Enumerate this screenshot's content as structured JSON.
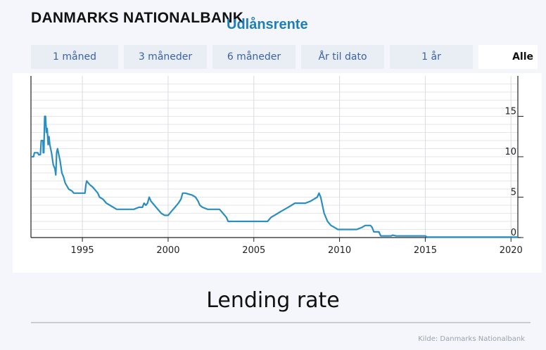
{
  "header": {
    "brand": "DANMARKS NATIONALBANK",
    "chart_title": "Udlånsrente"
  },
  "tabs": [
    {
      "label": "1 måned",
      "active": false
    },
    {
      "label": "3 måneder",
      "active": false
    },
    {
      "label": "6 måneder",
      "active": false
    },
    {
      "label": "År til dato",
      "active": false
    },
    {
      "label": "1 år",
      "active": false
    },
    {
      "label": "Alle",
      "active": true
    }
  ],
  "caption": "Lending rate",
  "source": "Kilde: Danmarks Nationalbank",
  "colors": {
    "line": "#2a8fc0",
    "tab_text": "#3a63a8",
    "title": "#1e7fb8"
  },
  "chart_data": {
    "type": "line",
    "title": "Udlånsrente",
    "xlabel": "",
    "ylabel": "",
    "xlim": [
      1992.0,
      2020.4
    ],
    "ylim": [
      0,
      20
    ],
    "xticks": [
      1995,
      2000,
      2005,
      2010,
      2015,
      2020
    ],
    "yticks": [
      0,
      5,
      10,
      15
    ],
    "grid": true,
    "y_axis_position": "right",
    "series": [
      {
        "name": "",
        "points": [
          [
            1992.0,
            10.0
          ],
          [
            1992.15,
            10.0
          ],
          [
            1992.2,
            10.5
          ],
          [
            1992.4,
            10.5
          ],
          [
            1992.45,
            10.25
          ],
          [
            1992.55,
            10.25
          ],
          [
            1992.6,
            12.0
          ],
          [
            1992.7,
            12.0
          ],
          [
            1992.72,
            10.5
          ],
          [
            1992.75,
            10.5
          ],
          [
            1992.8,
            15.0
          ],
          [
            1992.85,
            15.0
          ],
          [
            1992.9,
            13.0
          ],
          [
            1992.95,
            13.5
          ],
          [
            1993.0,
            11.5
          ],
          [
            1993.05,
            12.5
          ],
          [
            1993.1,
            11.5
          ],
          [
            1993.2,
            10.5
          ],
          [
            1993.3,
            9.0
          ],
          [
            1993.4,
            8.5
          ],
          [
            1993.45,
            7.75
          ],
          [
            1993.5,
            10.5
          ],
          [
            1993.55,
            11.0
          ],
          [
            1993.6,
            10.5
          ],
          [
            1993.7,
            9.5
          ],
          [
            1993.8,
            8.0
          ],
          [
            1993.9,
            7.5
          ],
          [
            1994.0,
            6.75
          ],
          [
            1994.2,
            6.0
          ],
          [
            1994.4,
            5.75
          ],
          [
            1994.5,
            5.5
          ],
          [
            1995.0,
            5.5
          ],
          [
            1995.15,
            5.5
          ],
          [
            1995.2,
            6.5
          ],
          [
            1995.25,
            7.0
          ],
          [
            1995.35,
            6.75
          ],
          [
            1995.45,
            6.5
          ],
          [
            1995.6,
            6.25
          ],
          [
            1995.7,
            6.0
          ],
          [
            1995.8,
            5.75
          ],
          [
            1995.9,
            5.5
          ],
          [
            1996.0,
            5.0
          ],
          [
            1996.2,
            4.75
          ],
          [
            1996.4,
            4.25
          ],
          [
            1996.6,
            4.0
          ],
          [
            1996.8,
            3.75
          ],
          [
            1997.0,
            3.5
          ],
          [
            1997.5,
            3.5
          ],
          [
            1998.0,
            3.5
          ],
          [
            1998.3,
            3.75
          ],
          [
            1998.5,
            3.75
          ],
          [
            1998.6,
            4.25
          ],
          [
            1998.7,
            4.0
          ],
          [
            1998.8,
            4.25
          ],
          [
            1998.9,
            5.0
          ],
          [
            1999.0,
            4.5
          ],
          [
            1999.2,
            4.0
          ],
          [
            1999.4,
            3.5
          ],
          [
            1999.6,
            3.0
          ],
          [
            1999.8,
            2.75
          ],
          [
            2000.0,
            2.75
          ],
          [
            2000.2,
            3.25
          ],
          [
            2000.4,
            3.75
          ],
          [
            2000.6,
            4.25
          ],
          [
            2000.75,
            4.75
          ],
          [
            2000.85,
            5.5
          ],
          [
            2001.0,
            5.5
          ],
          [
            2001.4,
            5.25
          ],
          [
            2001.6,
            5.0
          ],
          [
            2001.75,
            4.5
          ],
          [
            2001.85,
            4.0
          ],
          [
            2002.0,
            3.75
          ],
          [
            2002.3,
            3.5
          ],
          [
            2002.8,
            3.5
          ],
          [
            2003.0,
            3.5
          ],
          [
            2003.2,
            3.0
          ],
          [
            2003.4,
            2.5
          ],
          [
            2003.5,
            2.0
          ],
          [
            2003.6,
            2.0
          ],
          [
            2005.0,
            2.0
          ],
          [
            2005.8,
            2.0
          ],
          [
            2006.0,
            2.5
          ],
          [
            2006.2,
            2.75
          ],
          [
            2006.4,
            3.0
          ],
          [
            2006.6,
            3.25
          ],
          [
            2006.8,
            3.5
          ],
          [
            2007.0,
            3.75
          ],
          [
            2007.2,
            4.0
          ],
          [
            2007.4,
            4.25
          ],
          [
            2007.6,
            4.25
          ],
          [
            2008.0,
            4.25
          ],
          [
            2008.3,
            4.5
          ],
          [
            2008.5,
            4.75
          ],
          [
            2008.7,
            5.0
          ],
          [
            2008.8,
            5.5
          ],
          [
            2008.9,
            5.0
          ],
          [
            2009.0,
            4.0
          ],
          [
            2009.1,
            3.0
          ],
          [
            2009.2,
            2.5
          ],
          [
            2009.3,
            2.0
          ],
          [
            2009.5,
            1.5
          ],
          [
            2009.7,
            1.25
          ],
          [
            2009.9,
            1.0
          ],
          [
            2010.5,
            1.0
          ],
          [
            2011.0,
            1.0
          ],
          [
            2011.3,
            1.25
          ],
          [
            2011.5,
            1.5
          ],
          [
            2011.8,
            1.5
          ],
          [
            2011.9,
            1.25
          ],
          [
            2012.0,
            0.7
          ],
          [
            2012.3,
            0.7
          ],
          [
            2012.4,
            0.2
          ],
          [
            2013.0,
            0.2
          ],
          [
            2013.1,
            0.3
          ],
          [
            2013.3,
            0.2
          ],
          [
            2015.0,
            0.2
          ],
          [
            2015.1,
            0.05
          ],
          [
            2020.4,
            0.05
          ]
        ]
      }
    ]
  }
}
